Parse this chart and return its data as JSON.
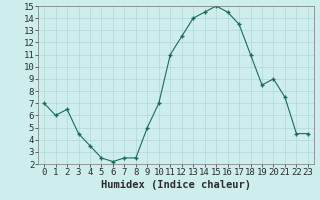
{
  "x": [
    0,
    1,
    2,
    3,
    4,
    5,
    6,
    7,
    8,
    9,
    10,
    11,
    12,
    13,
    14,
    15,
    16,
    17,
    18,
    19,
    20,
    21,
    22,
    23
  ],
  "y": [
    7,
    6,
    6.5,
    4.5,
    3.5,
    2.5,
    2.2,
    2.5,
    2.5,
    5,
    7,
    11,
    12.5,
    14,
    14.5,
    15,
    14.5,
    13.5,
    11,
    8.5,
    9,
    7.5,
    4.5,
    4.5
  ],
  "line_color": "#1a6b5a",
  "marker_color": "#1a6b5a",
  "bg_color": "#ceeeed",
  "grid_color": "#b0d8d5",
  "xlabel": "Humidex (Indice chaleur)",
  "ylim": [
    2,
    15
  ],
  "xlim": [
    -0.5,
    23.5
  ],
  "yticks": [
    2,
    3,
    4,
    5,
    6,
    7,
    8,
    9,
    10,
    11,
    12,
    13,
    14,
    15
  ],
  "xticks": [
    0,
    1,
    2,
    3,
    4,
    5,
    6,
    7,
    8,
    9,
    10,
    11,
    12,
    13,
    14,
    15,
    16,
    17,
    18,
    19,
    20,
    21,
    22,
    23
  ],
  "axis_label_color": "#2c2c2c",
  "tick_label_fontsize": 6.5,
  "xlabel_fontsize": 7.5
}
